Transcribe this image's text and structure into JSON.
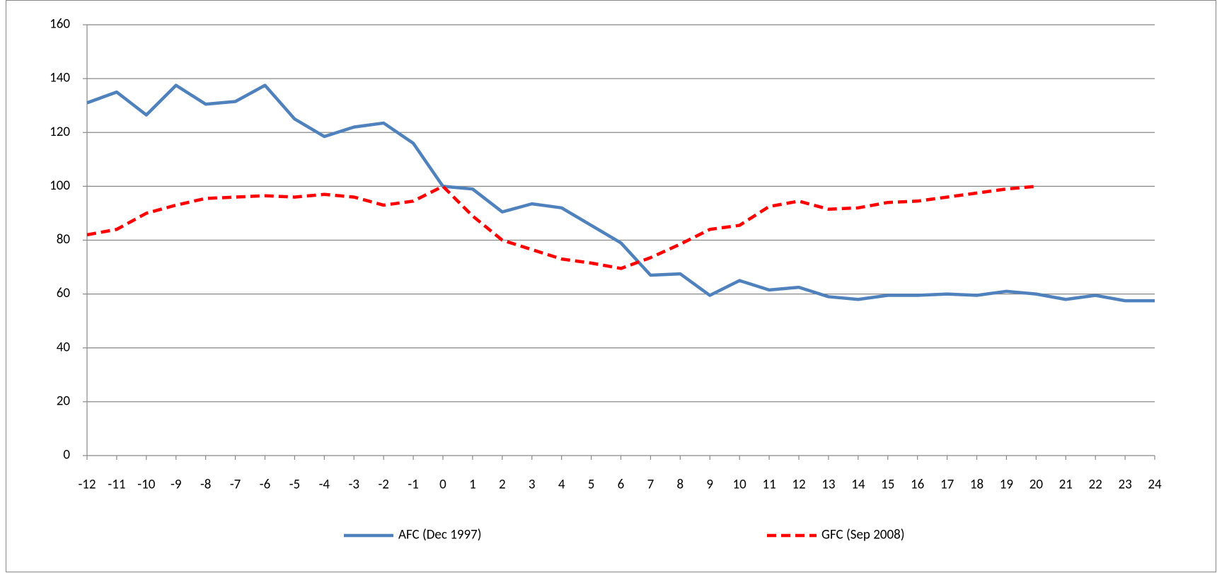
{
  "chart_data": {
    "type": "line",
    "x": [
      -12,
      -11,
      -10,
      -9,
      -8,
      -7,
      -6,
      -5,
      -4,
      -3,
      -2,
      -1,
      0,
      1,
      2,
      3,
      4,
      5,
      6,
      7,
      8,
      9,
      10,
      11,
      12,
      13,
      14,
      15,
      16,
      17,
      18,
      19,
      20,
      21,
      22,
      23,
      24
    ],
    "series": [
      {
        "name": "AFC (Dec 1997)",
        "color": "#4f81bd",
        "dash": false,
        "values": [
          131,
          135,
          126.5,
          137.5,
          130.5,
          131.5,
          137.5,
          125,
          118.5,
          122,
          123.5,
          116,
          100,
          99,
          90.5,
          93.5,
          92,
          85.5,
          79,
          67,
          67.5,
          59.5,
          65,
          61.5,
          62.5,
          59,
          58,
          59.5,
          59.5,
          60,
          59.5,
          61,
          60,
          58,
          59.5,
          57.5,
          57.5
        ]
      },
      {
        "name": "GFC (Sep 2008)",
        "color": "#ff0000",
        "dash": true,
        "values": [
          82,
          84,
          90,
          93,
          95.5,
          96,
          96.5,
          96,
          97,
          96,
          93,
          94.5,
          100,
          89,
          80,
          76.5,
          73,
          71.5,
          69.5,
          73.5,
          78.5,
          84,
          85.5,
          92.5,
          94.5,
          91.5,
          92,
          94,
          94.5,
          96,
          97.5,
          99,
          100,
          null,
          null,
          null,
          null
        ]
      }
    ],
    "xlim": [
      -12,
      24
    ],
    "xticks": [
      -12,
      -11,
      -10,
      -9,
      -8,
      -7,
      -6,
      -5,
      -4,
      -3,
      -2,
      -1,
      0,
      1,
      2,
      3,
      4,
      5,
      6,
      7,
      8,
      9,
      10,
      11,
      12,
      13,
      14,
      15,
      16,
      17,
      18,
      19,
      20,
      21,
      22,
      23,
      24
    ],
    "ylim": [
      0,
      160
    ],
    "yticks": [
      0,
      20,
      40,
      60,
      80,
      100,
      120,
      140,
      160
    ],
    "grid": true,
    "legend": "bottom"
  }
}
